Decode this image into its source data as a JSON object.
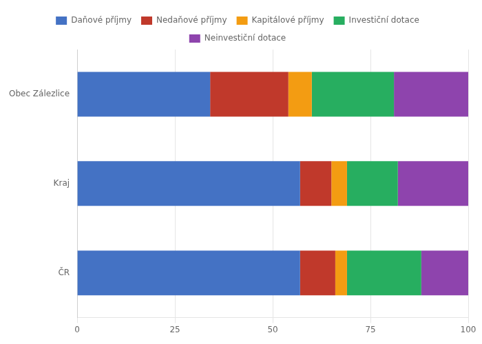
{
  "chart_data": {
    "type": "bar",
    "orientation": "horizontal",
    "stacked": true,
    "categories": [
      "ČR",
      "Kraj",
      "Obec Zálezlice"
    ],
    "series": [
      {
        "name": "Daňové příjmy",
        "color": "#4472C4",
        "values": [
          57,
          57,
          34
        ]
      },
      {
        "name": "Nedaňové příjmy",
        "color": "#C0392B",
        "values": [
          9,
          8,
          20
        ]
      },
      {
        "name": "Kapitálové příjmy",
        "color": "#F39C12",
        "values": [
          3,
          4,
          6
        ]
      },
      {
        "name": "Investiční dotace",
        "color": "#27AE60",
        "values": [
          19,
          13,
          21
        ]
      },
      {
        "name": "Neinvestiční dotace",
        "color": "#8E44AD",
        "values": [
          12,
          18,
          19
        ]
      }
    ],
    "xlim": [
      0,
      100
    ],
    "xticks": [
      0,
      25,
      50,
      75,
      100
    ],
    "grid": true,
    "legend": "top"
  }
}
